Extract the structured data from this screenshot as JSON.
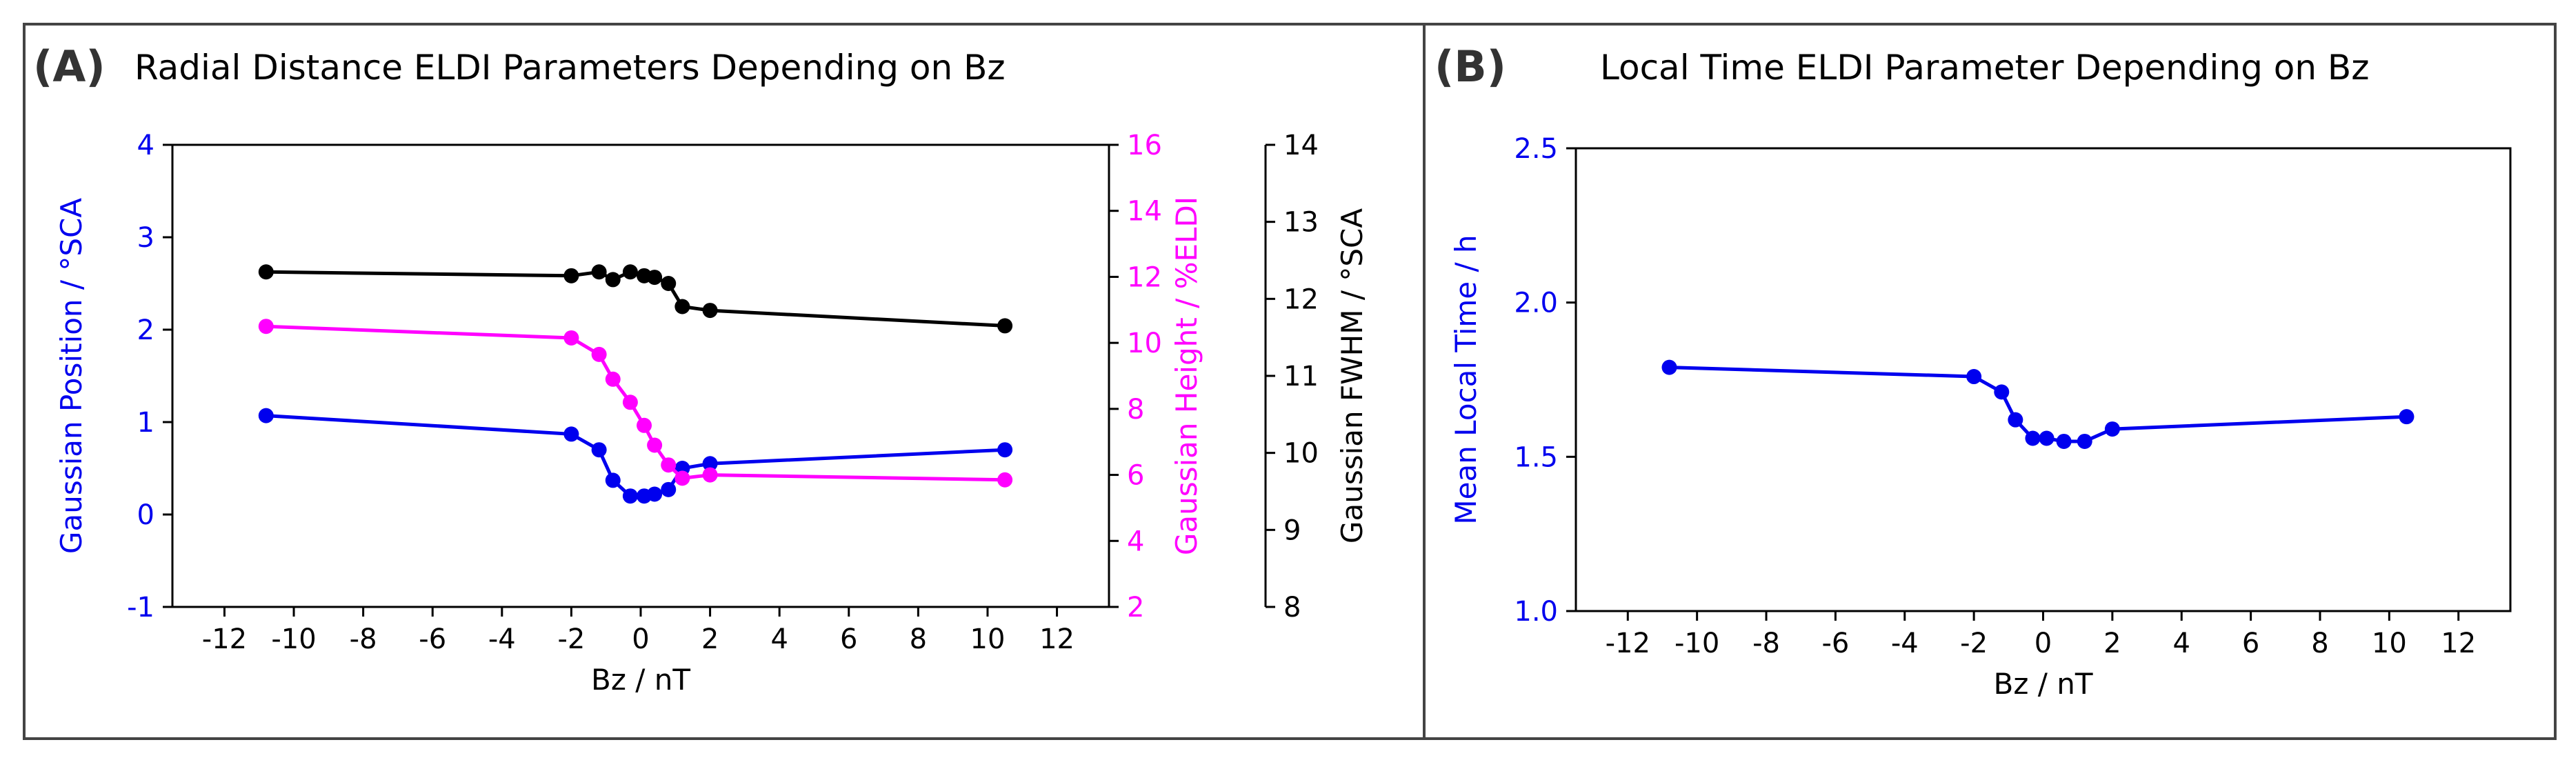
{
  "panels": {
    "a": {
      "label": "(A)",
      "title": "Radial Distance ELDI Parameters Depending on Bz"
    },
    "b": {
      "label": "(B)",
      "title": "Local Time ELDI Parameter Depending on Bz"
    }
  },
  "colors": {
    "blue": "#0000ee",
    "magenta": "#ff00ff",
    "black": "#000000",
    "frame": "#444444"
  },
  "chart_data": [
    {
      "type": "line",
      "panel": "A",
      "title": "Radial Distance ELDI Parameters Depending on Bz",
      "xlabel": "Bz / nT",
      "xlim": [
        -13.5,
        13.5
      ],
      "xticks": [
        -12,
        -10,
        -8,
        -6,
        -4,
        -2,
        0,
        2,
        4,
        6,
        8,
        10,
        12
      ],
      "x": [
        -10.8,
        -2.0,
        -1.2,
        -0.8,
        -0.3,
        0.1,
        0.4,
        0.8,
        1.2,
        2.0,
        10.5
      ],
      "axes": [
        {
          "name": "Gaussian Position",
          "ylabel": "Gaussian Position / °SCA",
          "color": "#0000ee",
          "side": "left",
          "ylim": [
            -1,
            4
          ],
          "yticks": [
            -1,
            0,
            1,
            2,
            3,
            4
          ]
        },
        {
          "name": "Gaussian Height",
          "ylabel": "Gaussian Height / %ELDI",
          "color": "#ff00ff",
          "side": "right",
          "ylim": [
            2,
            16
          ],
          "yticks": [
            2,
            4,
            6,
            8,
            10,
            12,
            14,
            16
          ]
        },
        {
          "name": "Gaussian FWHM",
          "ylabel": "Gaussian FWHM / °SCA",
          "color": "#000000",
          "side": "right-offset",
          "ylim": [
            8,
            14
          ],
          "yticks": [
            8,
            9,
            10,
            11,
            12,
            13,
            14
          ]
        }
      ],
      "series": [
        {
          "name": "Gaussian Position",
          "axis": 0,
          "color": "#0000ee",
          "values": [
            1.07,
            0.87,
            0.7,
            0.37,
            0.2,
            0.2,
            0.22,
            0.27,
            0.5,
            0.55,
            0.7
          ]
        },
        {
          "name": "Gaussian Height",
          "axis": 1,
          "color": "#ff00ff",
          "values": [
            10.5,
            10.15,
            9.65,
            8.9,
            8.2,
            7.5,
            6.9,
            6.3,
            5.9,
            6.0,
            5.85
          ]
        },
        {
          "name": "Gaussian FWHM",
          "axis": 2,
          "color": "#000000",
          "x": [
            -10.8,
            -2.0,
            -1.2,
            -0.8,
            -0.3,
            0.1,
            0.4,
            0.8,
            1.2,
            2.0,
            10.5
          ],
          "values": [
            12.35,
            12.3,
            12.35,
            12.25,
            12.35,
            12.3,
            12.28,
            12.2,
            11.9,
            11.85,
            11.65
          ]
        }
      ]
    },
    {
      "type": "line",
      "panel": "B",
      "title": "Local Time ELDI Parameter Depending on Bz",
      "xlabel": "Bz / nT",
      "ylabel": "Mean Local Time / h",
      "xlim": [
        -13.5,
        13.5
      ],
      "xticks": [
        -12,
        -10,
        -8,
        -6,
        -4,
        -2,
        0,
        2,
        4,
        6,
        8,
        10,
        12
      ],
      "ylim": [
        1.0,
        2.5
      ],
      "yticks": [
        "1.0",
        "1.5",
        "2.0",
        "2.5"
      ],
      "series": [
        {
          "name": "Mean Local Time",
          "color": "#0000ee",
          "x": [
            -10.8,
            -2.0,
            -1.2,
            -0.8,
            -0.3,
            0.1,
            0.6,
            1.2,
            2.0,
            10.5
          ],
          "values": [
            1.79,
            1.76,
            1.71,
            1.62,
            1.56,
            1.56,
            1.55,
            1.55,
            1.59,
            1.63
          ]
        }
      ]
    }
  ]
}
